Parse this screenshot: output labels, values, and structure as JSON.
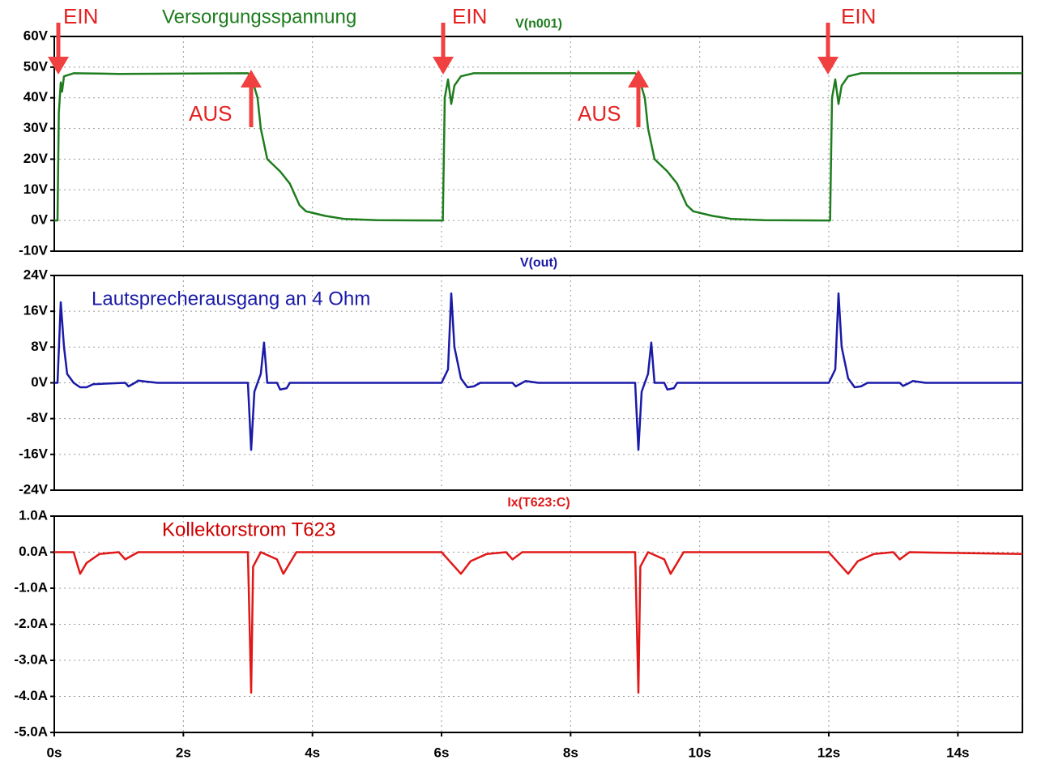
{
  "chart_data": [
    {
      "type": "line",
      "grid": true,
      "annotations": [
        "Versorgungsspannung",
        "EIN",
        "EIN",
        "EIN",
        "AUS",
        "AUS"
      ],
      "ylim": [
        -10,
        60
      ],
      "yticks": [
        {
          "value": 60,
          "label": "60V"
        },
        {
          "value": 50,
          "label": "50V"
        },
        {
          "value": 40,
          "label": "40V"
        },
        {
          "value": 30,
          "label": "30V"
        },
        {
          "value": 20,
          "label": "20V"
        },
        {
          "value": 10,
          "label": "10V"
        },
        {
          "value": 0,
          "label": "0V"
        },
        {
          "value": -10,
          "label": "-10V"
        }
      ],
      "series": [
        {
          "name": "V(n001)",
          "color": "#1e7d1e",
          "x": [
            0,
            0.05,
            0.07,
            0.1,
            0.12,
            0.15,
            0.3,
            1,
            3,
            3.05,
            3.15,
            3.2,
            3.3,
            3.5,
            3.65,
            3.8,
            3.9,
            4.2,
            4.5,
            5,
            6,
            6.02,
            6.05,
            6.1,
            6.15,
            6.2,
            6.3,
            6.5,
            9,
            9.05,
            9.15,
            9.2,
            9.3,
            9.5,
            9.65,
            9.8,
            9.9,
            10.2,
            10.5,
            11,
            12,
            12.02,
            12.05,
            12.1,
            12.15,
            12.2,
            12.3,
            12.5,
            15
          ],
          "values": [
            0,
            0,
            35,
            45,
            42,
            47,
            48,
            47.8,
            48,
            47,
            40,
            30,
            20,
            16,
            12,
            5,
            3,
            1.5,
            0.5,
            0.1,
            0,
            0,
            40,
            46,
            38,
            44,
            47,
            48,
            48,
            47,
            40,
            30,
            20,
            16,
            12,
            5,
            3,
            1.5,
            0.5,
            0.1,
            0,
            0,
            40,
            46,
            38,
            44,
            47,
            48,
            48
          ]
        }
      ]
    },
    {
      "type": "line",
      "grid": true,
      "annotations": [
        "Lautsprecherausgang an 4 Ohm"
      ],
      "ylim": [
        -24,
        24
      ],
      "yticks": [
        {
          "value": 24,
          "label": "24V"
        },
        {
          "value": 16,
          "label": "16V"
        },
        {
          "value": 8,
          "label": "8V"
        },
        {
          "value": 0,
          "label": "0V"
        },
        {
          "value": -8,
          "label": "-8V"
        },
        {
          "value": -16,
          "label": "-16V"
        },
        {
          "value": -24,
          "label": "-24V"
        }
      ],
      "series": [
        {
          "name": "V(out)",
          "color": "#1a1aa8",
          "x": [
            0,
            0.05,
            0.1,
            0.15,
            0.2,
            0.3,
            0.4,
            0.5,
            0.6,
            1.1,
            1.15,
            1.25,
            1.3,
            1.4,
            1.6,
            3.0,
            3.05,
            3.1,
            3.15,
            3.2,
            3.25,
            3.3,
            3.45,
            3.5,
            3.6,
            3.65,
            6.0,
            6.1,
            6.15,
            6.2,
            6.3,
            6.4,
            6.5,
            6.6,
            7.1,
            7.15,
            7.25,
            7.3,
            7.5,
            9.0,
            9.05,
            9.1,
            9.15,
            9.2,
            9.25,
            9.3,
            9.45,
            9.5,
            9.6,
            9.65,
            12.0,
            12.1,
            12.15,
            12.2,
            12.3,
            12.4,
            12.5,
            12.6,
            13.1,
            13.15,
            13.25,
            13.3,
            13.5,
            15
          ],
          "values": [
            0,
            0,
            18,
            8,
            2,
            0,
            -1,
            -1,
            -0.3,
            0,
            -0.8,
            0,
            0.5,
            0.3,
            0,
            0,
            -15,
            -2,
            0,
            2,
            9,
            0,
            0,
            -1.5,
            -1.2,
            0,
            0,
            3,
            20,
            8,
            1,
            -1,
            -0.8,
            0,
            0,
            -0.8,
            0,
            0.4,
            0,
            0,
            -15,
            -2,
            0,
            2,
            9,
            0,
            0,
            -1.5,
            -1.2,
            0,
            0,
            3,
            20,
            8,
            1,
            -1,
            -0.8,
            0,
            0,
            -0.7,
            0,
            0.4,
            0,
            0
          ]
        }
      ]
    },
    {
      "type": "line",
      "grid": true,
      "annotations": [
        "Kollektorstrom T623"
      ],
      "xlim": [
        0,
        15
      ],
      "xticks": [
        {
          "value": 0,
          "label": "0s"
        },
        {
          "value": 2,
          "label": "2s"
        },
        {
          "value": 4,
          "label": "4s"
        },
        {
          "value": 6,
          "label": "6s"
        },
        {
          "value": 8,
          "label": "8s"
        },
        {
          "value": 10,
          "label": "10s"
        },
        {
          "value": 12,
          "label": "12s"
        },
        {
          "value": 14,
          "label": "14s"
        }
      ],
      "ylim": [
        -5,
        1
      ],
      "yticks": [
        {
          "value": 1,
          "label": "1.0A"
        },
        {
          "value": 0,
          "label": "0.0A"
        },
        {
          "value": -1,
          "label": "-1.0A"
        },
        {
          "value": -2,
          "label": "-2.0A"
        },
        {
          "value": -3,
          "label": "-3.0A"
        },
        {
          "value": -4,
          "label": "-4.0A"
        },
        {
          "value": -5,
          "label": "-5.0A"
        }
      ],
      "series": [
        {
          "name": "Ix(T623:C)",
          "color": "#e01818",
          "x": [
            0,
            0.3,
            0.4,
            0.5,
            0.7,
            1.0,
            1.1,
            1.2,
            1.3,
            3.0,
            3.05,
            3.08,
            3.2,
            3.45,
            3.55,
            3.65,
            3.75,
            6.0,
            6.1,
            6.3,
            6.45,
            6.7,
            7.0,
            7.1,
            7.25,
            9.0,
            9.05,
            9.08,
            9.2,
            9.45,
            9.55,
            9.65,
            9.75,
            12.0,
            12.1,
            12.3,
            12.45,
            12.7,
            13.0,
            13.1,
            13.25,
            15
          ],
          "values": [
            0,
            0,
            -0.6,
            -0.3,
            -0.05,
            0,
            -0.2,
            -0.1,
            0,
            0,
            -3.9,
            -0.4,
            0,
            -0.2,
            -0.6,
            -0.3,
            0,
            0,
            -0.2,
            -0.6,
            -0.25,
            -0.05,
            0,
            -0.2,
            0,
            0,
            -3.9,
            -0.4,
            0,
            -0.2,
            -0.6,
            -0.3,
            0,
            0,
            -0.2,
            -0.6,
            -0.25,
            -0.05,
            0,
            -0.2,
            0,
            -0.05
          ]
        }
      ]
    }
  ]
}
